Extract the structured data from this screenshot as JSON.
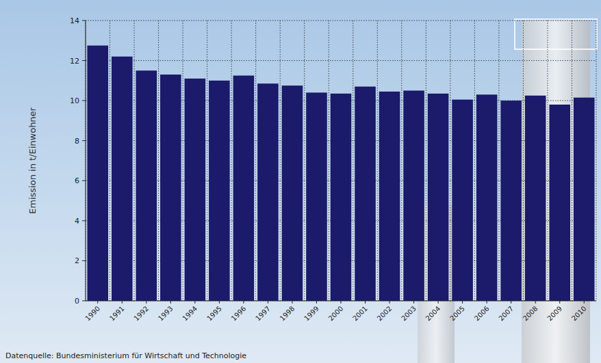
{
  "chart_data": {
    "type": "bar",
    "y_label": "Emission in t/Einwohner",
    "source": "Datenquelle: Bundesministerium für Wirtschaft und Technologie",
    "categories": [
      "1990",
      "1991",
      "1992",
      "1993",
      "1994",
      "1995",
      "1996",
      "1997",
      "1998",
      "1999",
      "2000",
      "2001",
      "2002",
      "2003",
      "2004",
      "2005",
      "2006",
      "2007",
      "2008",
      "2009",
      "2010"
    ],
    "values": [
      12.75,
      12.2,
      11.5,
      11.3,
      11.1,
      11.0,
      11.25,
      10.85,
      10.75,
      10.4,
      10.35,
      10.7,
      10.45,
      10.5,
      10.35,
      10.05,
      10.3,
      10.0,
      10.25,
      9.8,
      10.15
    ],
    "color": "#1b1a6b",
    "ylim": [
      0,
      14
    ],
    "yticks": [
      0,
      2,
      4,
      6,
      8,
      10,
      12,
      14
    ],
    "grid": true
  }
}
